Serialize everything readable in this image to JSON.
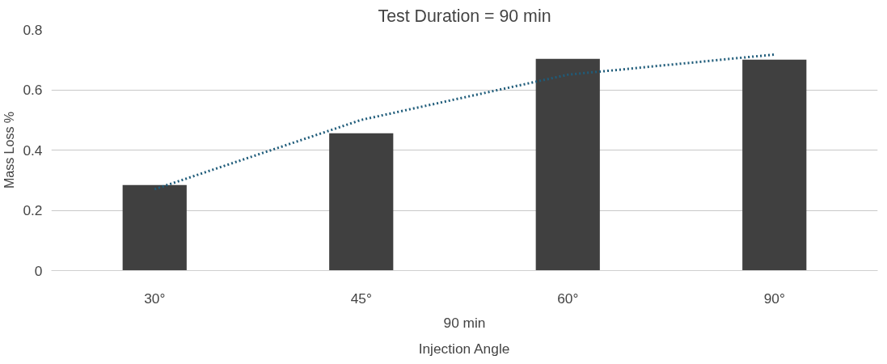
{
  "chart_data": {
    "type": "bar",
    "title": "Test Duration = 90 min",
    "xlabel": "Injection Angle",
    "ylabel": "Mass Loss %",
    "annotations": [
      "90 min"
    ],
    "categories": [
      "30°",
      "45°",
      "60°",
      "90°"
    ],
    "series": [
      {
        "color": "#404040",
        "values": [
          0.284,
          0.456,
          0.703,
          0.7
        ]
      },
      {
        "type": "line",
        "color": "#1f5c7a",
        "line_style": "dotted",
        "values": [
          0.27,
          0.5,
          0.65,
          0.717
        ]
      }
    ],
    "ylim": [
      0,
      0.8
    ],
    "yticks": [
      0,
      0.2,
      0.4,
      0.6,
      0.8
    ],
    "grid": "y"
  }
}
